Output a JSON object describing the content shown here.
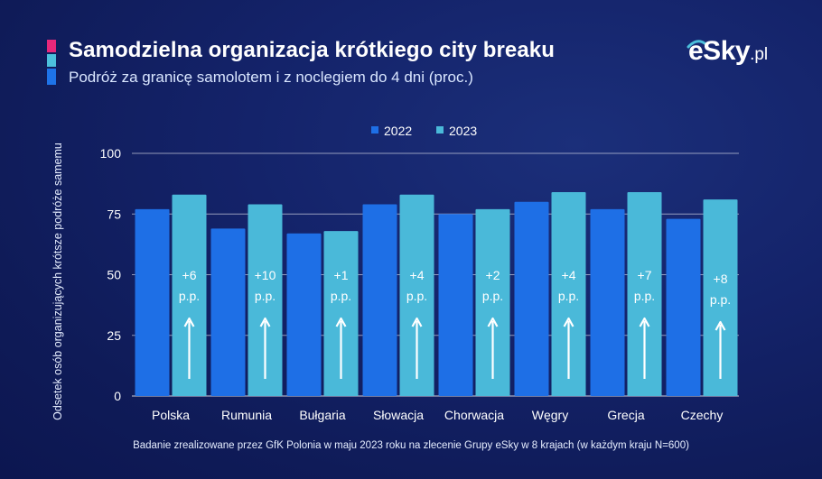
{
  "header": {
    "title": "Samodzielna organizacja krótkiego city breaku",
    "subtitle": "Podróż za granicę samolotem i z noclegiem do 4 dni (proc.)"
  },
  "logo": {
    "main": "eSky",
    "suffix": ".pl"
  },
  "colors": {
    "series_2022": "#1e6fe6",
    "series_2023": "#4ab9d9",
    "accent_pink": "#e8287a",
    "accent_cyan": "#4cc0dc",
    "accent_blue": "#1e73e8"
  },
  "chart_data": {
    "type": "bar",
    "title": "Samodzielna organizacja krótkiego city breaku",
    "ylabel": "Odsetek osób organizujących krótsze podróże samemu",
    "xlabel": "",
    "ylim": [
      0,
      100
    ],
    "yticks": [
      "0",
      "25",
      "50",
      "75",
      "100"
    ],
    "grid": true,
    "legend_position": "top-center",
    "categories": [
      "Polska",
      "Rumunia",
      "Bułgaria",
      "Słowacja",
      "Chorwacja",
      "Węgry",
      "Grecja",
      "Czechy"
    ],
    "series": [
      {
        "name": "2022",
        "values": [
          77,
          69,
          67,
          79,
          75,
          80,
          77,
          73
        ]
      },
      {
        "name": "2023",
        "values": [
          83,
          79,
          68,
          83,
          77,
          84,
          84,
          81
        ]
      }
    ],
    "annotations": [
      {
        "line1": "+6",
        "line2": "p.p."
      },
      {
        "line1": "+10",
        "line2": "p.p."
      },
      {
        "line1": "+1",
        "line2": "p.p."
      },
      {
        "line1": "+4",
        "line2": "p.p."
      },
      {
        "line1": "+2",
        "line2": "p.p."
      },
      {
        "line1": "+4",
        "line2": "p.p."
      },
      {
        "line1": "+7",
        "line2": "p.p."
      },
      {
        "line1": "+8",
        "line2": "p.p."
      }
    ]
  },
  "footnote": "Badanie zrealizowane przez GfK Polonia w maju 2023 roku na zlecenie Grupy eSky w 8 krajach (w każdym kraju N=600)"
}
